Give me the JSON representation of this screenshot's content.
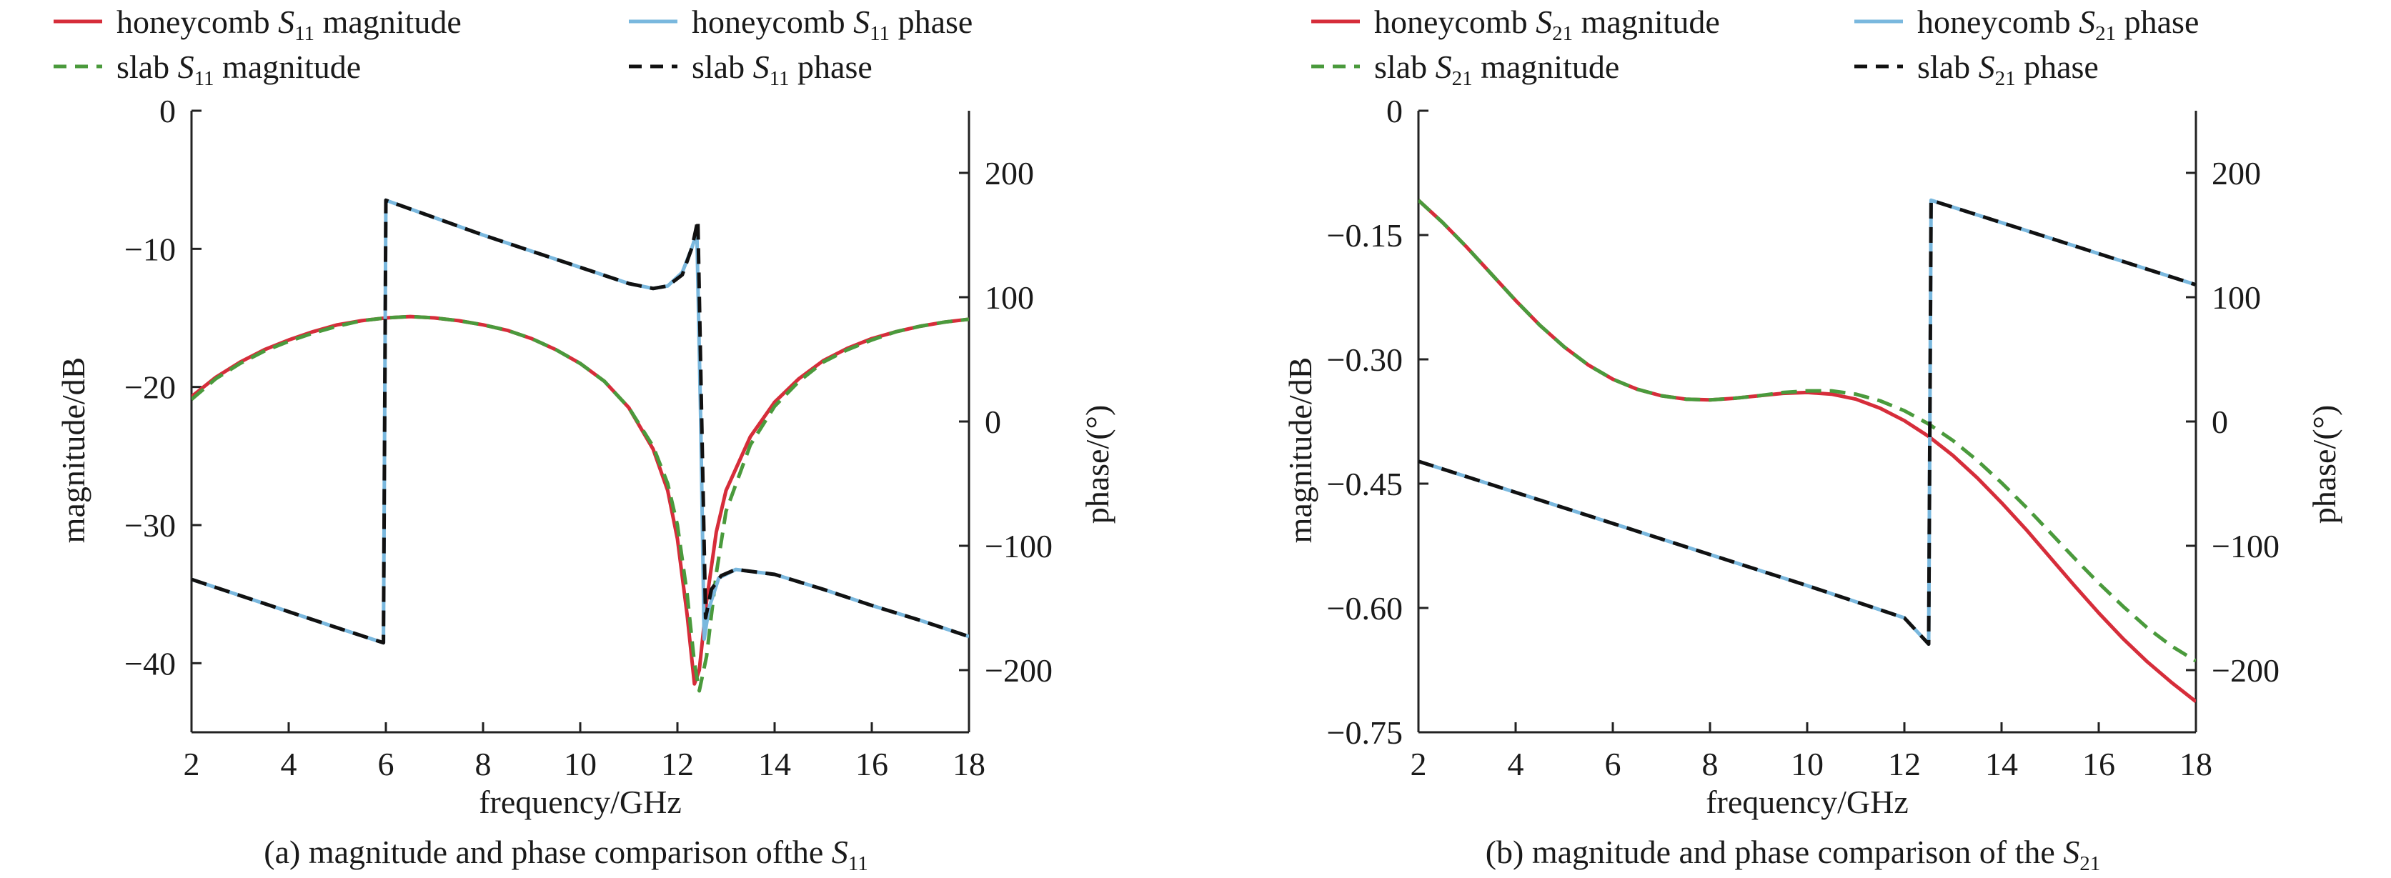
{
  "chart_data": [
    {
      "type": "line",
      "caption": {
        "prefix": "(a) magnitude and phase comparison ofthe ",
        "sym": "S",
        "sub": "11"
      },
      "xlabel": "frequency/GHz",
      "ylabel_left": "magnitude/dB",
      "ylabel_right": "phase/(°)",
      "xlim": [
        2,
        18
      ],
      "ylim_left": [
        -45,
        0
      ],
      "ylim_right": [
        -250,
        250
      ],
      "xticks": [
        "2",
        "4",
        "6",
        "8",
        "10",
        "12",
        "14",
        "16",
        "18"
      ],
      "yticks_left": [
        "0",
        "−10",
        "−20",
        "−30",
        "−40"
      ],
      "yticks_right": [
        "200",
        "100",
        "0",
        "−100",
        "−200"
      ],
      "legend": [
        {
          "pre": "honeycomb ",
          "sym": "S",
          "sub": "11",
          "post": " magnitude",
          "color": "#d62d3a",
          "dash": "solid"
        },
        {
          "pre": "honeycomb ",
          "sym": "S",
          "sub": "11",
          "post": " phase",
          "color": "#7ab8de",
          "dash": "solid"
        },
        {
          "pre": "slab ",
          "sym": "S",
          "sub": "11",
          "post": " magnitude",
          "color": "#4a9a3c",
          "dash": "dashed"
        },
        {
          "pre": "slab ",
          "sym": "S",
          "sub": "11",
          "post": " phase",
          "color": "#111111",
          "dash": "dashed"
        }
      ],
      "series": [
        {
          "name": "honeycomb S11 magnitude",
          "axis": "left",
          "color": "#d62d3a",
          "dash": "solid",
          "points": [
            [
              2,
              -20.7
            ],
            [
              2.5,
              -19.3
            ],
            [
              3,
              -18.2
            ],
            [
              3.5,
              -17.3
            ],
            [
              4,
              -16.6
            ],
            [
              4.5,
              -16.0
            ],
            [
              5,
              -15.5
            ],
            [
              5.5,
              -15.2
            ],
            [
              6,
              -15.0
            ],
            [
              6.5,
              -14.9
            ],
            [
              7,
              -15.0
            ],
            [
              7.5,
              -15.2
            ],
            [
              8,
              -15.5
            ],
            [
              8.5,
              -15.9
            ],
            [
              9,
              -16.5
            ],
            [
              9.5,
              -17.3
            ],
            [
              10,
              -18.3
            ],
            [
              10.5,
              -19.6
            ],
            [
              11,
              -21.5
            ],
            [
              11.5,
              -24.5
            ],
            [
              11.8,
              -27.5
            ],
            [
              12,
              -31.0
            ],
            [
              12.2,
              -36.5
            ],
            [
              12.35,
              -41.5
            ],
            [
              12.45,
              -40.5
            ],
            [
              12.6,
              -35.5
            ],
            [
              12.8,
              -30.5
            ],
            [
              13,
              -27.5
            ],
            [
              13.5,
              -23.6
            ],
            [
              14,
              -21.1
            ],
            [
              14.5,
              -19.4
            ],
            [
              15,
              -18.1
            ],
            [
              15.5,
              -17.2
            ],
            [
              16,
              -16.5
            ],
            [
              16.5,
              -16.0
            ],
            [
              17,
              -15.6
            ],
            [
              17.5,
              -15.3
            ],
            [
              18,
              -15.1
            ]
          ]
        },
        {
          "name": "slab S11 magnitude",
          "axis": "left",
          "color": "#4a9a3c",
          "dash": "dashed",
          "points": [
            [
              2,
              -20.9
            ],
            [
              2.5,
              -19.4
            ],
            [
              3,
              -18.3
            ],
            [
              3.5,
              -17.4
            ],
            [
              4,
              -16.7
            ],
            [
              4.5,
              -16.1
            ],
            [
              5,
              -15.6
            ],
            [
              5.5,
              -15.2
            ],
            [
              6,
              -15.0
            ],
            [
              6.5,
              -14.9
            ],
            [
              7,
              -15.0
            ],
            [
              7.5,
              -15.2
            ],
            [
              8,
              -15.5
            ],
            [
              8.5,
              -15.9
            ],
            [
              9,
              -16.5
            ],
            [
              9.5,
              -17.3
            ],
            [
              10,
              -18.3
            ],
            [
              10.5,
              -19.6
            ],
            [
              11,
              -21.5
            ],
            [
              11.5,
              -24.3
            ],
            [
              11.8,
              -27.0
            ],
            [
              12,
              -30.0
            ],
            [
              12.2,
              -35.0
            ],
            [
              12.35,
              -40.0
            ],
            [
              12.45,
              -42.0
            ],
            [
              12.6,
              -39.5
            ],
            [
              12.8,
              -33.5
            ],
            [
              13,
              -29.0
            ],
            [
              13.5,
              -24.2
            ],
            [
              14,
              -21.4
            ],
            [
              14.5,
              -19.6
            ],
            [
              15,
              -18.2
            ],
            [
              15.5,
              -17.3
            ],
            [
              16,
              -16.6
            ],
            [
              16.5,
              -16.0
            ],
            [
              17,
              -15.6
            ],
            [
              17.5,
              -15.3
            ],
            [
              18,
              -15.1
            ]
          ]
        },
        {
          "name": "honeycomb S11 phase",
          "axis": "right",
          "color": "#7ab8de",
          "dash": "solid",
          "points": [
            [
              2,
              -127
            ],
            [
              3,
              -140
            ],
            [
              4,
              -153
            ],
            [
              5,
              -166
            ],
            [
              5.95,
              -178
            ],
            [
              6.0,
              178
            ],
            [
              7,
              164
            ],
            [
              8,
              150
            ],
            [
              9,
              137
            ],
            [
              10,
              124
            ],
            [
              11,
              111
            ],
            [
              11.5,
              107
            ],
            [
              11.8,
              109
            ],
            [
              12.1,
              120
            ],
            [
              12.3,
              140
            ],
            [
              12.4,
              152
            ],
            [
              12.48,
              0
            ],
            [
              12.55,
              -175
            ],
            [
              12.65,
              -150
            ],
            [
              12.85,
              -126
            ],
            [
              13.2,
              -119
            ],
            [
              14,
              -123
            ],
            [
              15,
              -135
            ],
            [
              16,
              -148
            ],
            [
              17,
              -160
            ],
            [
              18,
              -173
            ]
          ]
        },
        {
          "name": "slab S11 phase",
          "axis": "right",
          "color": "#111111",
          "dash": "dashed",
          "points": [
            [
              2,
              -127
            ],
            [
              3,
              -140
            ],
            [
              4,
              -153
            ],
            [
              5,
              -166
            ],
            [
              5.95,
              -178
            ],
            [
              6.0,
              178
            ],
            [
              7,
              164
            ],
            [
              8,
              150
            ],
            [
              9,
              137
            ],
            [
              10,
              124
            ],
            [
              11,
              111
            ],
            [
              11.5,
              107
            ],
            [
              11.8,
              109
            ],
            [
              12.1,
              118
            ],
            [
              12.3,
              140
            ],
            [
              12.42,
              162
            ],
            [
              12.5,
              0
            ],
            [
              12.58,
              -158
            ],
            [
              12.7,
              -135
            ],
            [
              12.9,
              -124
            ],
            [
              13.2,
              -119
            ],
            [
              14,
              -123
            ],
            [
              15,
              -135
            ],
            [
              16,
              -148
            ],
            [
              17,
              -160
            ],
            [
              18,
              -173
            ]
          ]
        }
      ]
    },
    {
      "type": "line",
      "caption": {
        "prefix": "(b) magnitude and phase comparison of the ",
        "sym": "S",
        "sub": "21"
      },
      "xlabel": "frequency/GHz",
      "ylabel_left": "magnitude/dB",
      "ylabel_right": "phase/(°)",
      "xlim": [
        2,
        18
      ],
      "ylim_left": [
        -0.75,
        0
      ],
      "ylim_right": [
        -250,
        250
      ],
      "xticks": [
        "2",
        "4",
        "6",
        "8",
        "10",
        "12",
        "14",
        "16",
        "18"
      ],
      "yticks_left": [
        "0",
        "−0.15",
        "−0.30",
        "−0.45",
        "−0.60",
        "−0.75"
      ],
      "yticks_right": [
        "200",
        "100",
        "0",
        "−100",
        "−200"
      ],
      "legend": [
        {
          "pre": "honeycomb ",
          "sym": "S",
          "sub": "21",
          "post": " magnitude",
          "color": "#d62d3a",
          "dash": "solid"
        },
        {
          "pre": "honeycomb ",
          "sym": "S",
          "sub": "21",
          "post": " phase",
          "color": "#7ab8de",
          "dash": "solid"
        },
        {
          "pre": "slab ",
          "sym": "S",
          "sub": "21",
          "post": " magnitude",
          "color": "#4a9a3c",
          "dash": "dashed"
        },
        {
          "pre": "slab ",
          "sym": "S",
          "sub": "21",
          "post": " phase",
          "color": "#111111",
          "dash": "dashed"
        }
      ],
      "series": [
        {
          "name": "honeycomb S21 magnitude",
          "axis": "left",
          "color": "#d62d3a",
          "dash": "solid",
          "points": [
            [
              2,
              -0.108
            ],
            [
              2.5,
              -0.135
            ],
            [
              3,
              -0.165
            ],
            [
              3.5,
              -0.197
            ],
            [
              4,
              -0.229
            ],
            [
              4.5,
              -0.259
            ],
            [
              5,
              -0.285
            ],
            [
              5.5,
              -0.307
            ],
            [
              6,
              -0.324
            ],
            [
              6.5,
              -0.336
            ],
            [
              7,
              -0.344
            ],
            [
              7.5,
              -0.348
            ],
            [
              8,
              -0.349
            ],
            [
              8.5,
              -0.347
            ],
            [
              9,
              -0.344
            ],
            [
              9.5,
              -0.341
            ],
            [
              10,
              -0.34
            ],
            [
              10.5,
              -0.342
            ],
            [
              11,
              -0.348
            ],
            [
              11.5,
              -0.359
            ],
            [
              12,
              -0.374
            ],
            [
              12.5,
              -0.393
            ],
            [
              13,
              -0.416
            ],
            [
              13.5,
              -0.443
            ],
            [
              14,
              -0.473
            ],
            [
              14.5,
              -0.505
            ],
            [
              15,
              -0.539
            ],
            [
              15.5,
              -0.573
            ],
            [
              16,
              -0.606
            ],
            [
              16.5,
              -0.637
            ],
            [
              17,
              -0.665
            ],
            [
              17.5,
              -0.69
            ],
            [
              18,
              -0.713
            ]
          ]
        },
        {
          "name": "slab S21 magnitude",
          "axis": "left",
          "color": "#4a9a3c",
          "dash": "dashed",
          "points": [
            [
              2,
              -0.108
            ],
            [
              2.5,
              -0.135
            ],
            [
              3,
              -0.165
            ],
            [
              3.5,
              -0.197
            ],
            [
              4,
              -0.229
            ],
            [
              4.5,
              -0.259
            ],
            [
              5,
              -0.285
            ],
            [
              5.5,
              -0.307
            ],
            [
              6,
              -0.324
            ],
            [
              6.5,
              -0.336
            ],
            [
              7,
              -0.344
            ],
            [
              7.5,
              -0.348
            ],
            [
              8,
              -0.349
            ],
            [
              8.5,
              -0.347
            ],
            [
              9,
              -0.344
            ],
            [
              9.5,
              -0.34
            ],
            [
              10,
              -0.338
            ],
            [
              10.5,
              -0.338
            ],
            [
              11,
              -0.342
            ],
            [
              11.5,
              -0.35
            ],
            [
              12,
              -0.362
            ],
            [
              12.5,
              -0.378
            ],
            [
              13,
              -0.398
            ],
            [
              13.5,
              -0.422
            ],
            [
              14,
              -0.449
            ],
            [
              14.5,
              -0.478
            ],
            [
              15,
              -0.509
            ],
            [
              15.5,
              -0.54
            ],
            [
              16,
              -0.57
            ],
            [
              16.5,
              -0.598
            ],
            [
              17,
              -0.624
            ],
            [
              17.5,
              -0.646
            ],
            [
              18,
              -0.664
            ]
          ]
        },
        {
          "name": "honeycomb S21 phase",
          "axis": "right",
          "color": "#7ab8de",
          "dash": "solid",
          "points": [
            [
              2,
              -32
            ],
            [
              4,
              -57
            ],
            [
              6,
              -82
            ],
            [
              8,
              -107
            ],
            [
              10,
              -132
            ],
            [
              12,
              -158
            ],
            [
              12.5,
              -179
            ],
            [
              12.55,
              178
            ],
            [
              14,
              160
            ],
            [
              16,
              135
            ],
            [
              18,
              110
            ]
          ]
        },
        {
          "name": "slab S21 phase",
          "axis": "right",
          "color": "#111111",
          "dash": "dashed",
          "points": [
            [
              2,
              -32
            ],
            [
              4,
              -57
            ],
            [
              6,
              -82
            ],
            [
              8,
              -107
            ],
            [
              10,
              -132
            ],
            [
              12,
              -158
            ],
            [
              12.5,
              -179
            ],
            [
              12.55,
              178
            ],
            [
              14,
              160
            ],
            [
              16,
              135
            ],
            [
              18,
              110
            ]
          ]
        }
      ]
    }
  ]
}
